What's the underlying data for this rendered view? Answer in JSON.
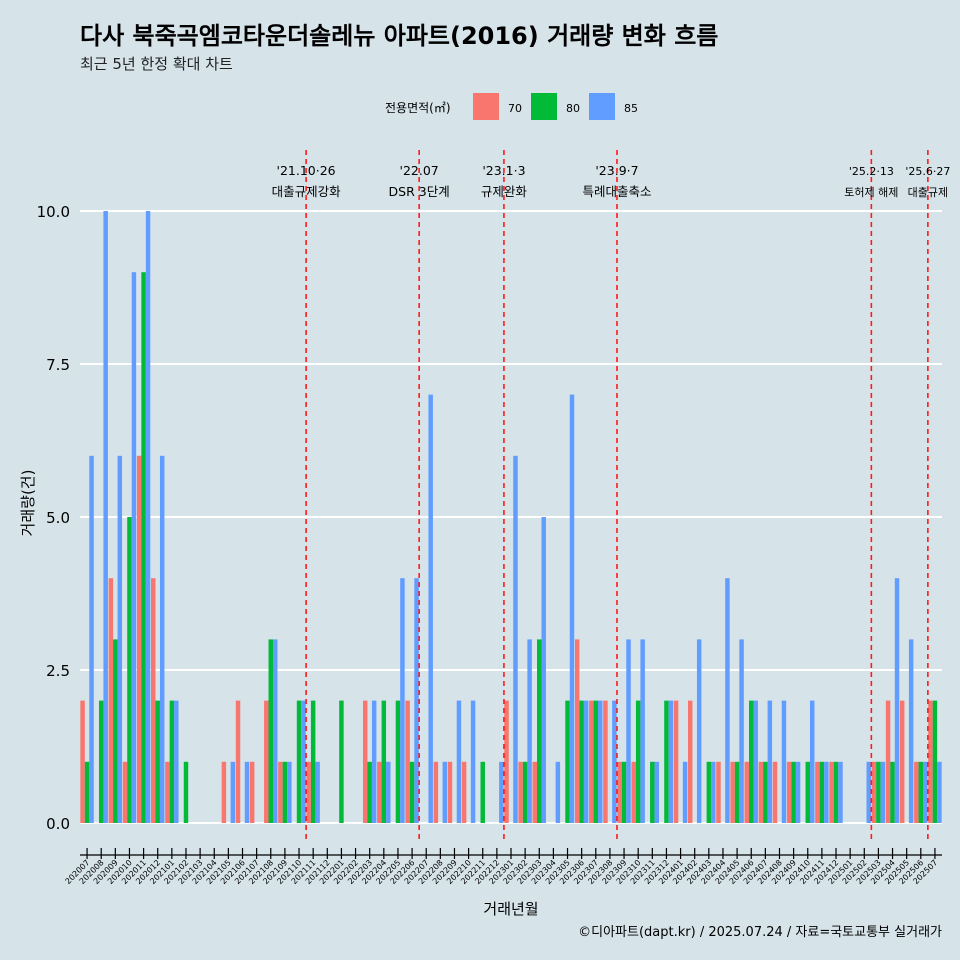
{
  "chart_data": {
    "type": "bar",
    "title": "다사 북죽곡엠코타운더솔레뉴 아파트(2016) 거래량 변화 흐름",
    "subtitle": "최근 5년 한정 확대 차트",
    "xlabel": "거래년월",
    "ylabel": "거래량(건)",
    "caption": "©디아파트(dapt.kr) / 2025.07.24 / 자료=국토교통부 실거래가",
    "legend_title": "전용면적(㎡)",
    "legend_position": "top",
    "grid": true,
    "ylim": [
      -0.55,
      11.15
    ],
    "yticks": [
      0.0,
      2.5,
      5.0,
      7.5,
      10.0
    ],
    "ytick_labels": [
      "0.0",
      "2.5",
      "5.0",
      "7.5",
      "10.0"
    ],
    "categories": [
      "202007",
      "202008",
      "202009",
      "202010",
      "202011",
      "202012",
      "202101",
      "202102",
      "202103",
      "202104",
      "202105",
      "202106",
      "202107",
      "202108",
      "202109",
      "202110",
      "202111",
      "202112",
      "202201",
      "202202",
      "202203",
      "202204",
      "202205",
      "202206",
      "202207",
      "202208",
      "202209",
      "202210",
      "202211",
      "202212",
      "202301",
      "202302",
      "202303",
      "202304",
      "202305",
      "202306",
      "202307",
      "202308",
      "202309",
      "202310",
      "202311",
      "202312",
      "202401",
      "202402",
      "202403",
      "202404",
      "202405",
      "202406",
      "202407",
      "202408",
      "202409",
      "202410",
      "202411",
      "202412",
      "202501",
      "202502",
      "202503",
      "202504",
      "202505",
      "202506",
      "202507"
    ],
    "series": [
      {
        "name": "70",
        "color": "#f8766d",
        "values": [
          2,
          0,
          4,
          1,
          6,
          4,
          1,
          0,
          0,
          0,
          1,
          2,
          1,
          2,
          1,
          0,
          1,
          0,
          0,
          0,
          2,
          1,
          0,
          2,
          0,
          1,
          1,
          1,
          0,
          0,
          2,
          1,
          1,
          0,
          0,
          3,
          2,
          2,
          1,
          1,
          0,
          0,
          2,
          2,
          0,
          1,
          1,
          1,
          1,
          1,
          1,
          0,
          1,
          1,
          0,
          0,
          1,
          2,
          2,
          1,
          2
        ]
      },
      {
        "name": "80",
        "color": "#00ba38",
        "values": [
          1,
          2,
          3,
          5,
          9,
          2,
          2,
          1,
          0,
          0,
          0,
          0,
          0,
          3,
          1,
          2,
          2,
          0,
          2,
          0,
          1,
          2,
          2,
          1,
          0,
          0,
          0,
          0,
          1,
          0,
          0,
          1,
          3,
          0,
          2,
          2,
          2,
          0,
          1,
          2,
          1,
          2,
          0,
          0,
          1,
          0,
          1,
          2,
          1,
          0,
          1,
          1,
          1,
          1,
          0,
          0,
          1,
          1,
          0,
          1,
          2
        ]
      },
      {
        "name": "85",
        "color": "#619cff",
        "values": [
          6,
          10,
          6,
          9,
          10,
          6,
          2,
          0,
          0,
          0,
          1,
          1,
          0,
          3,
          1,
          2,
          1,
          0,
          0,
          0,
          2,
          1,
          4,
          4,
          7,
          1,
          2,
          2,
          0,
          1,
          6,
          3,
          5,
          1,
          7,
          2,
          2,
          2,
          3,
          3,
          1,
          2,
          1,
          3,
          1,
          4,
          3,
          2,
          2,
          2,
          1,
          2,
          1,
          1,
          0,
          1,
          1,
          4,
          3,
          1,
          1
        ]
      }
    ],
    "events": [
      {
        "date": "'21.10·26",
        "label": "대출규제강화",
        "after": "202110"
      },
      {
        "date": "'22.07",
        "label": "DSR 3단계",
        "after": "202206"
      },
      {
        "date": "'23.1·3",
        "label": "규제완화",
        "after": "202212"
      },
      {
        "date": "'23.9·7",
        "label": "특례대출축소",
        "after": "202308"
      },
      {
        "date": "'25.2·13",
        "label": "토허제 해제",
        "after": "202502"
      },
      {
        "date": "'25.6·27",
        "label": "대출규제",
        "after": "202506"
      }
    ]
  }
}
